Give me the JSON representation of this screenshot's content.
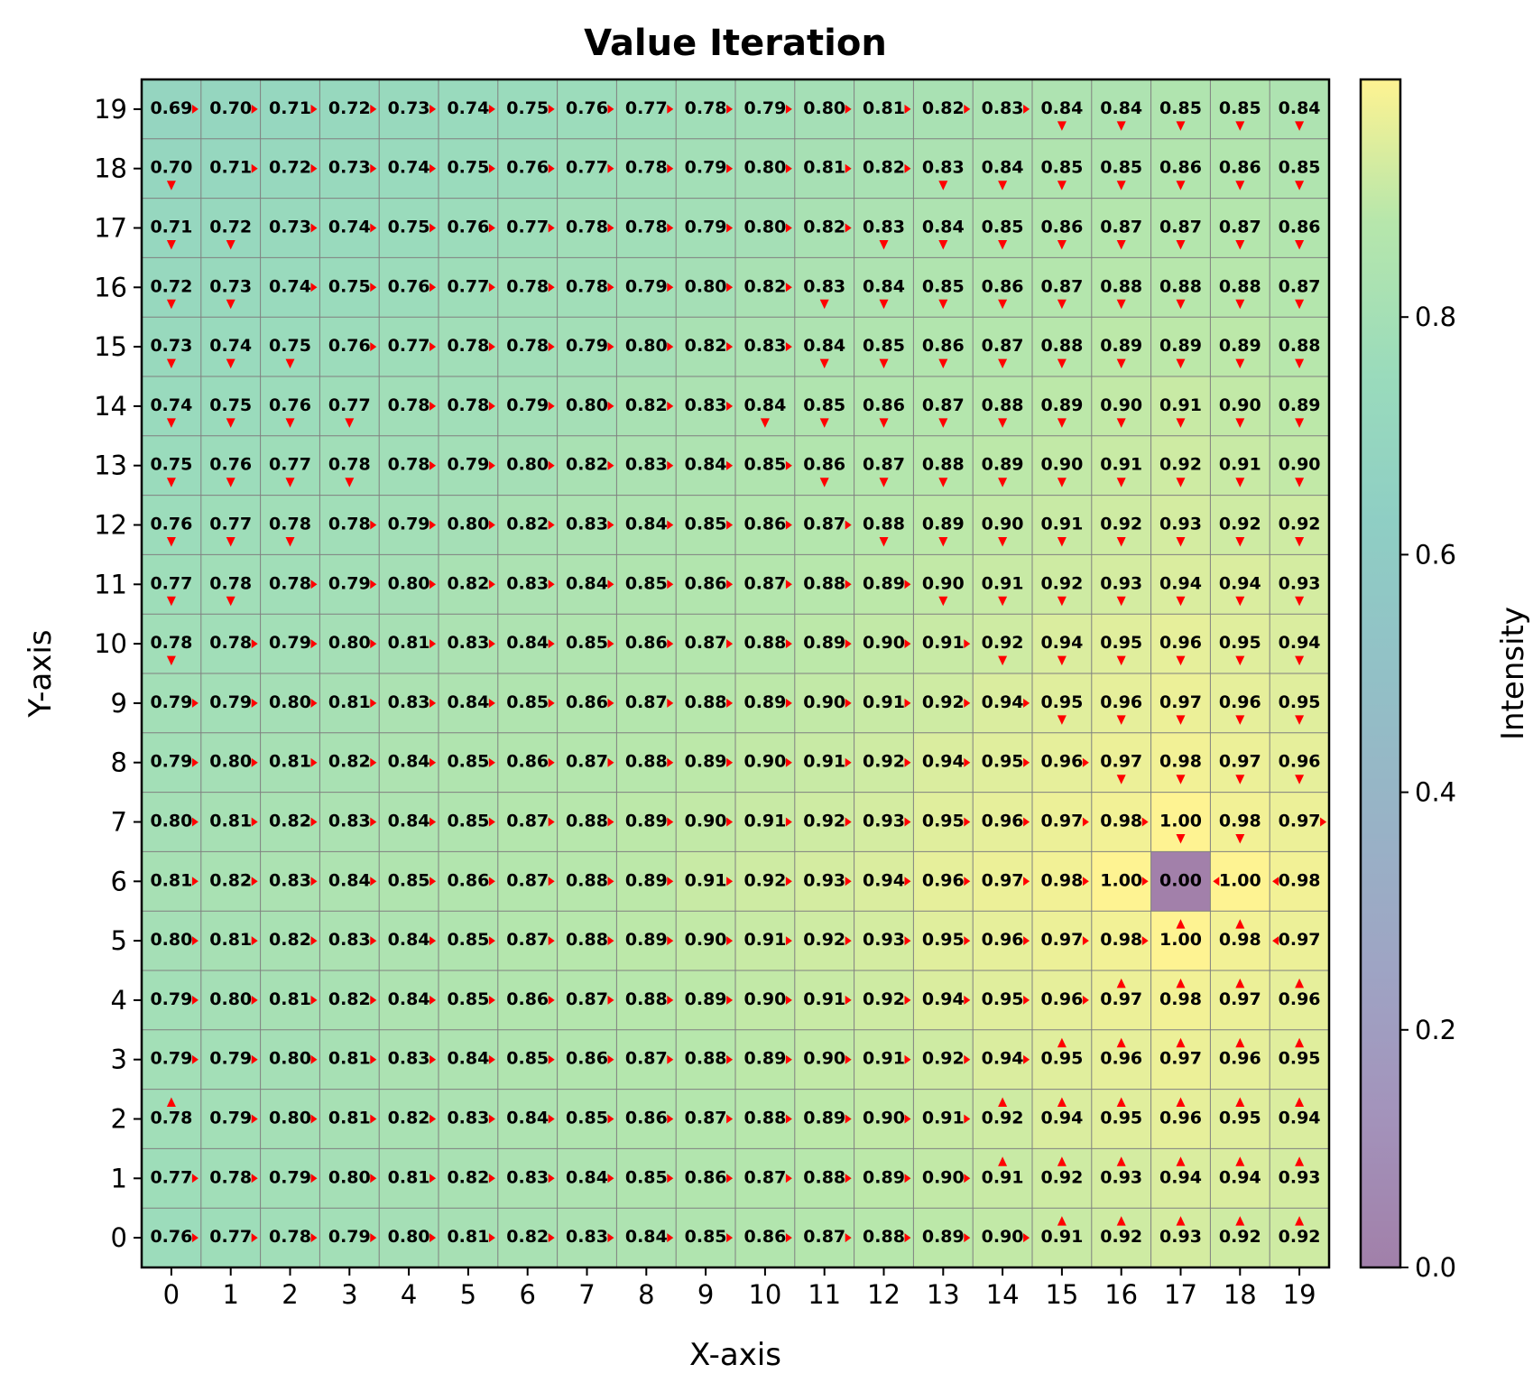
{
  "chart_data": {
    "type": "heatmap",
    "title": "Value Iteration",
    "xlabel": "X-axis",
    "ylabel": "Y-axis",
    "colorbar_label": "Intensity",
    "x_ticks": [
      "0",
      "1",
      "2",
      "3",
      "4",
      "5",
      "6",
      "7",
      "8",
      "9",
      "10",
      "11",
      "12",
      "13",
      "14",
      "15",
      "16",
      "17",
      "18",
      "19"
    ],
    "y_ticks": [
      "0",
      "1",
      "2",
      "3",
      "4",
      "5",
      "6",
      "7",
      "8",
      "9",
      "10",
      "11",
      "12",
      "13",
      "14",
      "15",
      "16",
      "17",
      "18",
      "19"
    ],
    "colorbar_ticks": [
      "0.0",
      "0.2",
      "0.4",
      "0.6",
      "0.8"
    ],
    "colorbar_tick_values": [
      0.0,
      0.2,
      0.4,
      0.6,
      0.8
    ],
    "color_range": [
      0.0,
      1.0
    ],
    "colormap": "viridis",
    "alpha": 0.5,
    "grid_color": "#808080",
    "arrow_color": "#ff0000",
    "goal_cell": [
      17,
      6
    ],
    "row_order": "top-to-bottom, y=19 first",
    "values": [
      [
        "0.69",
        "0.70",
        "0.71",
        "0.72",
        "0.73",
        "0.74",
        "0.75",
        "0.76",
        "0.77",
        "0.78",
        "0.79",
        "0.80",
        "0.81",
        "0.82",
        "0.83",
        "0.84",
        "0.84",
        "0.85",
        "0.85",
        "0.84"
      ],
      [
        "0.70",
        "0.71",
        "0.72",
        "0.73",
        "0.74",
        "0.75",
        "0.76",
        "0.77",
        "0.78",
        "0.79",
        "0.80",
        "0.81",
        "0.82",
        "0.83",
        "0.84",
        "0.85",
        "0.85",
        "0.86",
        "0.86",
        "0.85"
      ],
      [
        "0.71",
        "0.72",
        "0.73",
        "0.74",
        "0.75",
        "0.76",
        "0.77",
        "0.78",
        "0.78",
        "0.79",
        "0.80",
        "0.82",
        "0.83",
        "0.84",
        "0.85",
        "0.86",
        "0.87",
        "0.87",
        "0.87",
        "0.86"
      ],
      [
        "0.72",
        "0.73",
        "0.74",
        "0.75",
        "0.76",
        "0.77",
        "0.78",
        "0.78",
        "0.79",
        "0.80",
        "0.82",
        "0.83",
        "0.84",
        "0.85",
        "0.86",
        "0.87",
        "0.88",
        "0.88",
        "0.88",
        "0.87"
      ],
      [
        "0.73",
        "0.74",
        "0.75",
        "0.76",
        "0.77",
        "0.78",
        "0.78",
        "0.79",
        "0.80",
        "0.82",
        "0.83",
        "0.84",
        "0.85",
        "0.86",
        "0.87",
        "0.88",
        "0.89",
        "0.89",
        "0.89",
        "0.88"
      ],
      [
        "0.74",
        "0.75",
        "0.76",
        "0.77",
        "0.78",
        "0.78",
        "0.79",
        "0.80",
        "0.82",
        "0.83",
        "0.84",
        "0.85",
        "0.86",
        "0.87",
        "0.88",
        "0.89",
        "0.90",
        "0.91",
        "0.90",
        "0.89"
      ],
      [
        "0.75",
        "0.76",
        "0.77",
        "0.78",
        "0.78",
        "0.79",
        "0.80",
        "0.82",
        "0.83",
        "0.84",
        "0.85",
        "0.86",
        "0.87",
        "0.88",
        "0.89",
        "0.90",
        "0.91",
        "0.92",
        "0.91",
        "0.90"
      ],
      [
        "0.76",
        "0.77",
        "0.78",
        "0.78",
        "0.79",
        "0.80",
        "0.82",
        "0.83",
        "0.84",
        "0.85",
        "0.86",
        "0.87",
        "0.88",
        "0.89",
        "0.90",
        "0.91",
        "0.92",
        "0.93",
        "0.92",
        "0.92"
      ],
      [
        "0.77",
        "0.78",
        "0.78",
        "0.79",
        "0.80",
        "0.82",
        "0.83",
        "0.84",
        "0.85",
        "0.86",
        "0.87",
        "0.88",
        "0.89",
        "0.90",
        "0.91",
        "0.92",
        "0.93",
        "0.94",
        "0.94",
        "0.93"
      ],
      [
        "0.78",
        "0.78",
        "0.79",
        "0.80",
        "0.81",
        "0.83",
        "0.84",
        "0.85",
        "0.86",
        "0.87",
        "0.88",
        "0.89",
        "0.90",
        "0.91",
        "0.92",
        "0.94",
        "0.95",
        "0.96",
        "0.95",
        "0.94"
      ],
      [
        "0.79",
        "0.79",
        "0.80",
        "0.81",
        "0.83",
        "0.84",
        "0.85",
        "0.86",
        "0.87",
        "0.88",
        "0.89",
        "0.90",
        "0.91",
        "0.92",
        "0.94",
        "0.95",
        "0.96",
        "0.97",
        "0.96",
        "0.95"
      ],
      [
        "0.79",
        "0.80",
        "0.81",
        "0.82",
        "0.84",
        "0.85",
        "0.86",
        "0.87",
        "0.88",
        "0.89",
        "0.90",
        "0.91",
        "0.92",
        "0.94",
        "0.95",
        "0.96",
        "0.97",
        "0.98",
        "0.97",
        "0.96"
      ],
      [
        "0.80",
        "0.81",
        "0.82",
        "0.83",
        "0.84",
        "0.85",
        "0.87",
        "0.88",
        "0.89",
        "0.90",
        "0.91",
        "0.92",
        "0.93",
        "0.95",
        "0.96",
        "0.97",
        "0.98",
        "1.00",
        "0.98",
        "0.97"
      ],
      [
        "0.81",
        "0.82",
        "0.83",
        "0.84",
        "0.85",
        "0.86",
        "0.87",
        "0.88",
        "0.89",
        "0.91",
        "0.92",
        "0.93",
        "0.94",
        "0.96",
        "0.97",
        "0.98",
        "1.00",
        "0.00",
        "1.00",
        "0.98"
      ],
      [
        "0.80",
        "0.81",
        "0.82",
        "0.83",
        "0.84",
        "0.85",
        "0.87",
        "0.88",
        "0.89",
        "0.90",
        "0.91",
        "0.92",
        "0.93",
        "0.95",
        "0.96",
        "0.97",
        "0.98",
        "1.00",
        "0.98",
        "0.97"
      ],
      [
        "0.79",
        "0.80",
        "0.81",
        "0.82",
        "0.84",
        "0.85",
        "0.86",
        "0.87",
        "0.88",
        "0.89",
        "0.90",
        "0.91",
        "0.92",
        "0.94",
        "0.95",
        "0.96",
        "0.97",
        "0.98",
        "0.97",
        "0.96"
      ],
      [
        "0.79",
        "0.79",
        "0.80",
        "0.81",
        "0.83",
        "0.84",
        "0.85",
        "0.86",
        "0.87",
        "0.88",
        "0.89",
        "0.90",
        "0.91",
        "0.92",
        "0.94",
        "0.95",
        "0.96",
        "0.97",
        "0.96",
        "0.95"
      ],
      [
        "0.78",
        "0.79",
        "0.80",
        "0.81",
        "0.82",
        "0.83",
        "0.84",
        "0.85",
        "0.86",
        "0.87",
        "0.88",
        "0.89",
        "0.90",
        "0.91",
        "0.92",
        "0.94",
        "0.95",
        "0.96",
        "0.95",
        "0.94"
      ],
      [
        "0.77",
        "0.78",
        "0.79",
        "0.80",
        "0.81",
        "0.82",
        "0.83",
        "0.84",
        "0.85",
        "0.86",
        "0.87",
        "0.88",
        "0.89",
        "0.90",
        "0.91",
        "0.92",
        "0.93",
        "0.94",
        "0.94",
        "0.93"
      ],
      [
        "0.76",
        "0.77",
        "0.78",
        "0.79",
        "0.80",
        "0.81",
        "0.82",
        "0.83",
        "0.84",
        "0.85",
        "0.86",
        "0.87",
        "0.88",
        "0.89",
        "0.90",
        "0.91",
        "0.92",
        "0.93",
        "0.92",
        "0.92"
      ]
    ],
    "policy": [
      "RRRRRRRRRRRRRRRDDDDD",
      "DRRRRRRRRRRRRDDDDDDD",
      "DDRRRRRRRRRRDDDDDDDD",
      "DDRRRRRRRRRDDDDDDDDD",
      "DDDRRRRRRRRDDDDDDDDD",
      "DDDDRRRRRRDDDDDDDDDD",
      "DDDDRRRRRRRDDDDDDDDD",
      "DDDRRRRRRRRRDDDDDDDD",
      "DDRRRRRRRRRRRDDDDDDD",
      "DRRRRRRRRRRRRRDDDDDD",
      "RRRRRRRRRRRRRRRDDDDD",
      "RRRRRRRRRRRRRRRRDDDD",
      "RRRRRRRRRRRRRRRRRDDR",
      "RRRRRRRRRRRRRRRRR.LL",
      "RRRRRRRRRRRRRRRRRUUL",
      "RRRRRRRRRRRRRRRRUUUU",
      "RRRRRRRRRRRRRRRUUUUU",
      "URRRRRRRRRRRRRUUUUUU",
      "RRRRRRRRRRRRRRUUUUUU",
      "RRRRRRRRRRRRRRRUUUUU"
    ]
  }
}
